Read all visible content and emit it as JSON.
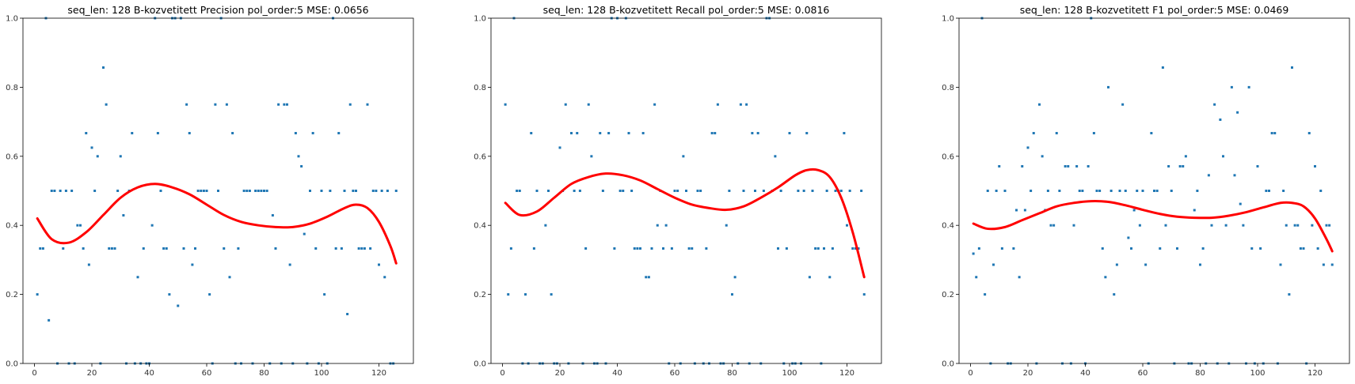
{
  "chart_data": [
    {
      "type": "scatter",
      "title": "seq_len: 128    B-kozvetitett   Precision   pol_order:5   MSE: 0.0656",
      "xlim": [
        -4,
        132
      ],
      "ylim": [
        0,
        1
      ],
      "xticks": [
        0,
        20,
        40,
        60,
        80,
        100,
        120
      ],
      "yticks": [
        0.0,
        0.2,
        0.4,
        0.6,
        0.8,
        1.0
      ],
      "grid": false,
      "colors": {
        "points": "#1f77b4",
        "fit": "#ff0000"
      },
      "series": [
        {
          "kind": "points",
          "x": [
            1,
            2,
            3,
            4,
            5,
            6,
            7,
            8,
            9,
            10,
            11,
            12,
            13,
            14,
            15,
            16,
            17,
            18,
            19,
            20,
            21,
            22,
            23,
            24,
            25,
            26,
            27,
            28,
            29,
            30,
            31,
            32,
            33,
            34,
            35,
            36,
            37,
            38,
            39,
            40,
            41,
            42,
            43,
            44,
            45,
            46,
            47,
            48,
            49,
            50,
            51,
            52,
            53,
            54,
            55,
            56,
            57,
            58,
            59,
            60,
            61,
            62,
            63,
            64,
            65,
            66,
            67,
            68,
            69,
            70,
            71,
            72,
            73,
            74,
            75,
            76,
            77,
            78,
            79,
            80,
            81,
            82,
            83,
            84,
            85,
            86,
            87,
            88,
            89,
            90,
            91,
            92,
            93,
            94,
            95,
            96,
            97,
            98,
            99,
            100,
            101,
            102,
            103,
            104,
            105,
            106,
            107,
            108,
            109,
            110,
            111,
            112,
            113,
            114,
            115,
            116,
            117,
            118,
            119,
            120,
            121,
            122,
            123,
            124,
            125,
            126
          ],
          "y": [
            0.2,
            0.333,
            0.333,
            1.0,
            0.125,
            0.5,
            0.5,
            0.0,
            0.5,
            0.333,
            0.5,
            0.0,
            0.5,
            0.0,
            0.4,
            0.4,
            0.333,
            0.667,
            0.286,
            0.625,
            0.5,
            0.6,
            0.0,
            0.857,
            0.75,
            0.333,
            0.333,
            0.333,
            0.5,
            0.6,
            0.429,
            0.0,
            0.5,
            0.667,
            0.0,
            0.25,
            0.0,
            0.333,
            0.0,
            0.0,
            0.4,
            1.0,
            0.667,
            0.5,
            0.333,
            0.333,
            0.2,
            1.0,
            1.0,
            0.167,
            1.0,
            0.333,
            0.75,
            0.667,
            0.286,
            0.333,
            0.5,
            0.5,
            0.5,
            0.5,
            0.2,
            0.0,
            0.75,
            0.5,
            1.0,
            0.333,
            0.75,
            0.25,
            0.667,
            0.0,
            0.333,
            0.0,
            0.5,
            0.5,
            0.5,
            0.0,
            0.5,
            0.5,
            0.5,
            0.5,
            0.5,
            0.0,
            0.429,
            0.333,
            0.75,
            0.0,
            0.75,
            0.75,
            0.286,
            0.0,
            0.667,
            0.6,
            0.571,
            0.375,
            0.0,
            0.5,
            0.667,
            0.333,
            0.0,
            0.5,
            0.2,
            0.0,
            0.5,
            1.0,
            0.333,
            0.667,
            0.333,
            0.5,
            0.143,
            0.75,
            0.5,
            0.5,
            0.333,
            0.333,
            0.333,
            0.75,
            0.333,
            0.5,
            0.5,
            0.286,
            0.5,
            0.25,
            0.5,
            0.0,
            0.0,
            0.5
          ]
        },
        {
          "kind": "fit",
          "x": [
            1,
            6,
            12,
            18,
            24,
            30,
            36,
            42,
            48,
            54,
            60,
            66,
            72,
            78,
            84,
            90,
            96,
            102,
            108,
            112,
            116,
            120,
            124,
            126
          ],
          "y": [
            0.42,
            0.36,
            0.35,
            0.38,
            0.43,
            0.48,
            0.51,
            0.52,
            0.51,
            0.49,
            0.46,
            0.43,
            0.41,
            0.4,
            0.395,
            0.395,
            0.405,
            0.425,
            0.45,
            0.46,
            0.45,
            0.41,
            0.34,
            0.29
          ]
        }
      ]
    },
    {
      "type": "scatter",
      "title": "seq_len: 128    B-kozvetitett   Recall   pol_order:5   MSE: 0.0816",
      "xlim": [
        -4,
        132
      ],
      "ylim": [
        0,
        1
      ],
      "xticks": [
        0,
        20,
        40,
        60,
        80,
        100,
        120
      ],
      "yticks": [
        0.0,
        0.2,
        0.4,
        0.6,
        0.8,
        1.0
      ],
      "grid": false,
      "colors": {
        "points": "#1f77b4",
        "fit": "#ff0000"
      },
      "series": [
        {
          "kind": "points",
          "x": [
            1,
            2,
            3,
            4,
            5,
            6,
            7,
            8,
            9,
            10,
            11,
            12,
            13,
            14,
            15,
            16,
            17,
            18,
            19,
            20,
            21,
            22,
            23,
            24,
            25,
            26,
            27,
            28,
            29,
            30,
            31,
            32,
            33,
            34,
            35,
            36,
            37,
            38,
            39,
            40,
            41,
            42,
            43,
            44,
            45,
            46,
            47,
            48,
            49,
            50,
            51,
            52,
            53,
            54,
            55,
            56,
            57,
            58,
            59,
            60,
            61,
            62,
            63,
            64,
            65,
            66,
            67,
            68,
            69,
            70,
            71,
            72,
            73,
            74,
            75,
            76,
            77,
            78,
            79,
            80,
            81,
            82,
            83,
            84,
            85,
            86,
            87,
            88,
            89,
            90,
            91,
            92,
            93,
            94,
            95,
            96,
            97,
            98,
            99,
            100,
            101,
            102,
            103,
            104,
            105,
            106,
            107,
            108,
            109,
            110,
            111,
            112,
            113,
            114,
            115,
            116,
            117,
            118,
            119,
            120,
            121,
            122,
            123,
            124,
            125,
            126
          ],
          "y": [
            0.75,
            0.2,
            0.333,
            1.0,
            0.5,
            0.5,
            0.0,
            0.2,
            0.0,
            0.667,
            0.333,
            0.5,
            0.0,
            0.0,
            0.4,
            0.5,
            0.2,
            0.0,
            0.0,
            0.625,
            0.5,
            0.75,
            0.0,
            0.667,
            0.5,
            0.667,
            0.5,
            0.0,
            0.333,
            0.75,
            0.6,
            0.0,
            0.0,
            0.667,
            0.5,
            0.0,
            0.667,
            1.0,
            0.333,
            1.0,
            0.5,
            0.5,
            1.0,
            0.667,
            0.5,
            0.333,
            0.333,
            0.333,
            0.667,
            0.25,
            0.25,
            0.333,
            0.75,
            0.4,
            0.5,
            0.333,
            0.4,
            0.0,
            0.333,
            0.5,
            0.5,
            0.0,
            0.6,
            0.5,
            0.333,
            0.333,
            0.0,
            0.5,
            0.5,
            0.0,
            0.333,
            0.0,
            0.667,
            0.667,
            0.75,
            0.0,
            0.0,
            0.4,
            0.5,
            0.2,
            0.25,
            0.0,
            0.75,
            0.5,
            0.75,
            0.0,
            0.667,
            0.5,
            0.667,
            0.0,
            0.5,
            1.0,
            1.0,
            0.5,
            0.6,
            0.333,
            0.5,
            0.0,
            0.333,
            0.667,
            0.0,
            0.0,
            0.5,
            0.0,
            0.5,
            0.667,
            0.25,
            0.5,
            0.333,
            0.333,
            0.0,
            0.333,
            0.5,
            0.25,
            0.333,
            0.5,
            0.5,
            0.5,
            0.667,
            0.4,
            0.5,
            0.333,
            0.333,
            0.333,
            0.5,
            0.2
          ]
        },
        {
          "kind": "fit",
          "x": [
            1,
            6,
            12,
            18,
            24,
            30,
            36,
            42,
            48,
            54,
            60,
            66,
            72,
            78,
            84,
            90,
            96,
            102,
            106,
            110,
            114,
            118,
            122,
            126
          ],
          "y": [
            0.465,
            0.43,
            0.44,
            0.48,
            0.52,
            0.54,
            0.55,
            0.545,
            0.53,
            0.505,
            0.48,
            0.46,
            0.45,
            0.445,
            0.455,
            0.48,
            0.51,
            0.545,
            0.56,
            0.56,
            0.54,
            0.48,
            0.38,
            0.25
          ]
        }
      ]
    },
    {
      "type": "scatter",
      "title": "seq_len: 128    B-kozvetitett   F1   pol_order:5   MSE: 0.0469",
      "xlim": [
        -4,
        132
      ],
      "ylim": [
        0,
        1
      ],
      "xticks": [
        0,
        20,
        40,
        60,
        80,
        100,
        120
      ],
      "yticks": [
        0.0,
        0.2,
        0.4,
        0.6,
        0.8,
        1.0
      ],
      "grid": false,
      "colors": {
        "points": "#1f77b4",
        "fit": "#ff0000"
      },
      "series": [
        {
          "kind": "points",
          "x": [
            1,
            2,
            3,
            4,
            5,
            6,
            7,
            8,
            9,
            10,
            11,
            12,
            13,
            14,
            15,
            16,
            17,
            18,
            19,
            20,
            21,
            22,
            23,
            24,
            25,
            26,
            27,
            28,
            29,
            30,
            31,
            32,
            33,
            34,
            35,
            36,
            37,
            38,
            39,
            40,
            41,
            42,
            43,
            44,
            45,
            46,
            47,
            48,
            49,
            50,
            51,
            52,
            53,
            54,
            55,
            56,
            57,
            58,
            59,
            60,
            61,
            62,
            63,
            64,
            65,
            66,
            67,
            68,
            69,
            70,
            71,
            72,
            73,
            74,
            75,
            76,
            77,
            78,
            79,
            80,
            81,
            82,
            83,
            84,
            85,
            86,
            87,
            88,
            89,
            90,
            91,
            92,
            93,
            94,
            95,
            96,
            97,
            98,
            99,
            100,
            101,
            102,
            103,
            104,
            105,
            106,
            107,
            108,
            109,
            110,
            111,
            112,
            113,
            114,
            115,
            116,
            117,
            118,
            119,
            120,
            121,
            122,
            123,
            124,
            125,
            126
          ],
          "y": [
            0.318,
            0.25,
            0.333,
            1.0,
            0.2,
            0.5,
            0.0,
            0.286,
            0.5,
            0.571,
            0.333,
            0.5,
            0.0,
            0.0,
            0.333,
            0.444,
            0.25,
            0.571,
            0.444,
            0.625,
            0.5,
            0.667,
            0.0,
            0.75,
            0.6,
            0.444,
            0.5,
            0.4,
            0.4,
            0.667,
            0.5,
            0.0,
            0.571,
            0.571,
            0.0,
            0.4,
            0.571,
            0.5,
            0.5,
            0.0,
            0.571,
            1.0,
            0.667,
            0.5,
            0.5,
            0.333,
            0.25,
            0.8,
            0.5,
            0.2,
            0.286,
            0.5,
            0.75,
            0.5,
            0.364,
            0.333,
            0.444,
            0.5,
            0.4,
            0.5,
            0.286,
            0.0,
            0.667,
            0.5,
            0.5,
            0.333,
            0.857,
            0.4,
            0.571,
            0.5,
            0.0,
            0.333,
            0.571,
            0.571,
            0.6,
            0.0,
            0.0,
            0.444,
            0.5,
            0.286,
            0.333,
            0.0,
            0.545,
            0.4,
            0.75,
            0.0,
            0.706,
            0.6,
            0.4,
            0.0,
            0.8,
            0.545,
            0.727,
            0.462,
            0.4,
            0.0,
            0.8,
            0.333,
            0.0,
            0.571,
            0.333,
            0.0,
            0.5,
            0.5,
            0.667,
            0.667,
            0.0,
            0.286,
            0.5,
            0.4,
            0.2,
            0.857,
            0.4,
            0.4,
            0.333,
            0.333,
            0.0,
            0.667,
            0.4,
            0.571,
            0.333,
            0.5,
            0.286,
            0.4,
            0.4,
            0.286
          ]
        },
        {
          "kind": "fit",
          "x": [
            1,
            6,
            12,
            18,
            24,
            30,
            36,
            42,
            48,
            54,
            60,
            66,
            72,
            78,
            84,
            90,
            96,
            102,
            108,
            112,
            116,
            120,
            124,
            126
          ],
          "y": [
            0.405,
            0.39,
            0.395,
            0.415,
            0.435,
            0.455,
            0.465,
            0.47,
            0.468,
            0.458,
            0.445,
            0.433,
            0.425,
            0.422,
            0.422,
            0.428,
            0.438,
            0.452,
            0.465,
            0.465,
            0.455,
            0.42,
            0.36,
            0.325
          ]
        }
      ]
    }
  ]
}
